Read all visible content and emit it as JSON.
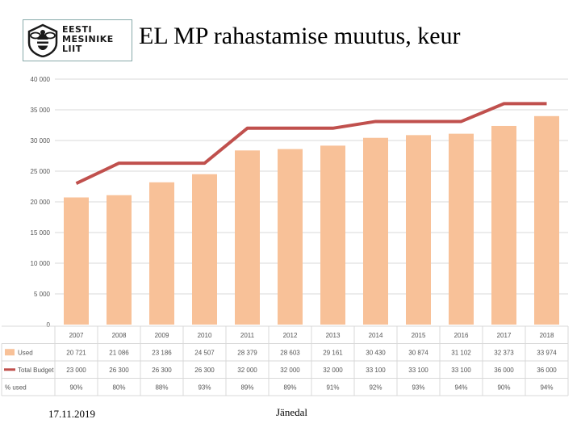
{
  "logo": {
    "text_lines": [
      "EESTI",
      "MESINIKE",
      "LIIT"
    ]
  },
  "title": "EL MP rahastamise muutus, keur",
  "footer": {
    "date": "17.11.2019",
    "place": "Jänedal"
  },
  "colors": {
    "bar": "#f8c198",
    "line": "#c0504d",
    "grid": "#d9d9d9",
    "text": "#555555"
  },
  "chart_data": {
    "type": "bar",
    "categories": [
      "2007",
      "2008",
      "2009",
      "2010",
      "2011",
      "2012",
      "2013",
      "2014",
      "2015",
      "2016",
      "2017",
      "2018"
    ],
    "series": [
      {
        "name": "Used",
        "type": "bar",
        "values": [
          20721,
          21086,
          23186,
          24507,
          28379,
          28603,
          29161,
          30430,
          30874,
          31102,
          32373,
          33974
        ]
      },
      {
        "name": "Total Budget",
        "type": "line",
        "values": [
          23000,
          26300,
          26300,
          26300,
          32000,
          32000,
          32000,
          33100,
          33100,
          33100,
          36000,
          36000
        ]
      }
    ],
    "ylim": [
      0,
      40000
    ],
    "yticks": [
      0,
      5000,
      10000,
      15000,
      20000,
      25000,
      30000,
      35000,
      40000
    ],
    "ytick_labels": [
      "0",
      "5 000",
      "10 000",
      "15 000",
      "20 000",
      "25 000",
      "30 000",
      "35 000",
      "40 000"
    ],
    "grid": true,
    "legend": "table-below",
    "table": {
      "rows": [
        {
          "label": "Used",
          "values": [
            "20 721",
            "21 086",
            "23 186",
            "24 507",
            "28 379",
            "28 603",
            "29 161",
            "30 430",
            "30 874",
            "31 102",
            "32 373",
            "33 974"
          ]
        },
        {
          "label": "Total Budget",
          "values": [
            "23 000",
            "26 300",
            "26 300",
            "26 300",
            "32 000",
            "32 000",
            "32 000",
            "33 100",
            "33 100",
            "33 100",
            "36 000",
            "36 000"
          ]
        },
        {
          "label": "% used",
          "values": [
            "90%",
            "80%",
            "88%",
            "93%",
            "89%",
            "89%",
            "91%",
            "92%",
            "93%",
            "94%",
            "90%",
            "94%"
          ]
        }
      ]
    }
  }
}
